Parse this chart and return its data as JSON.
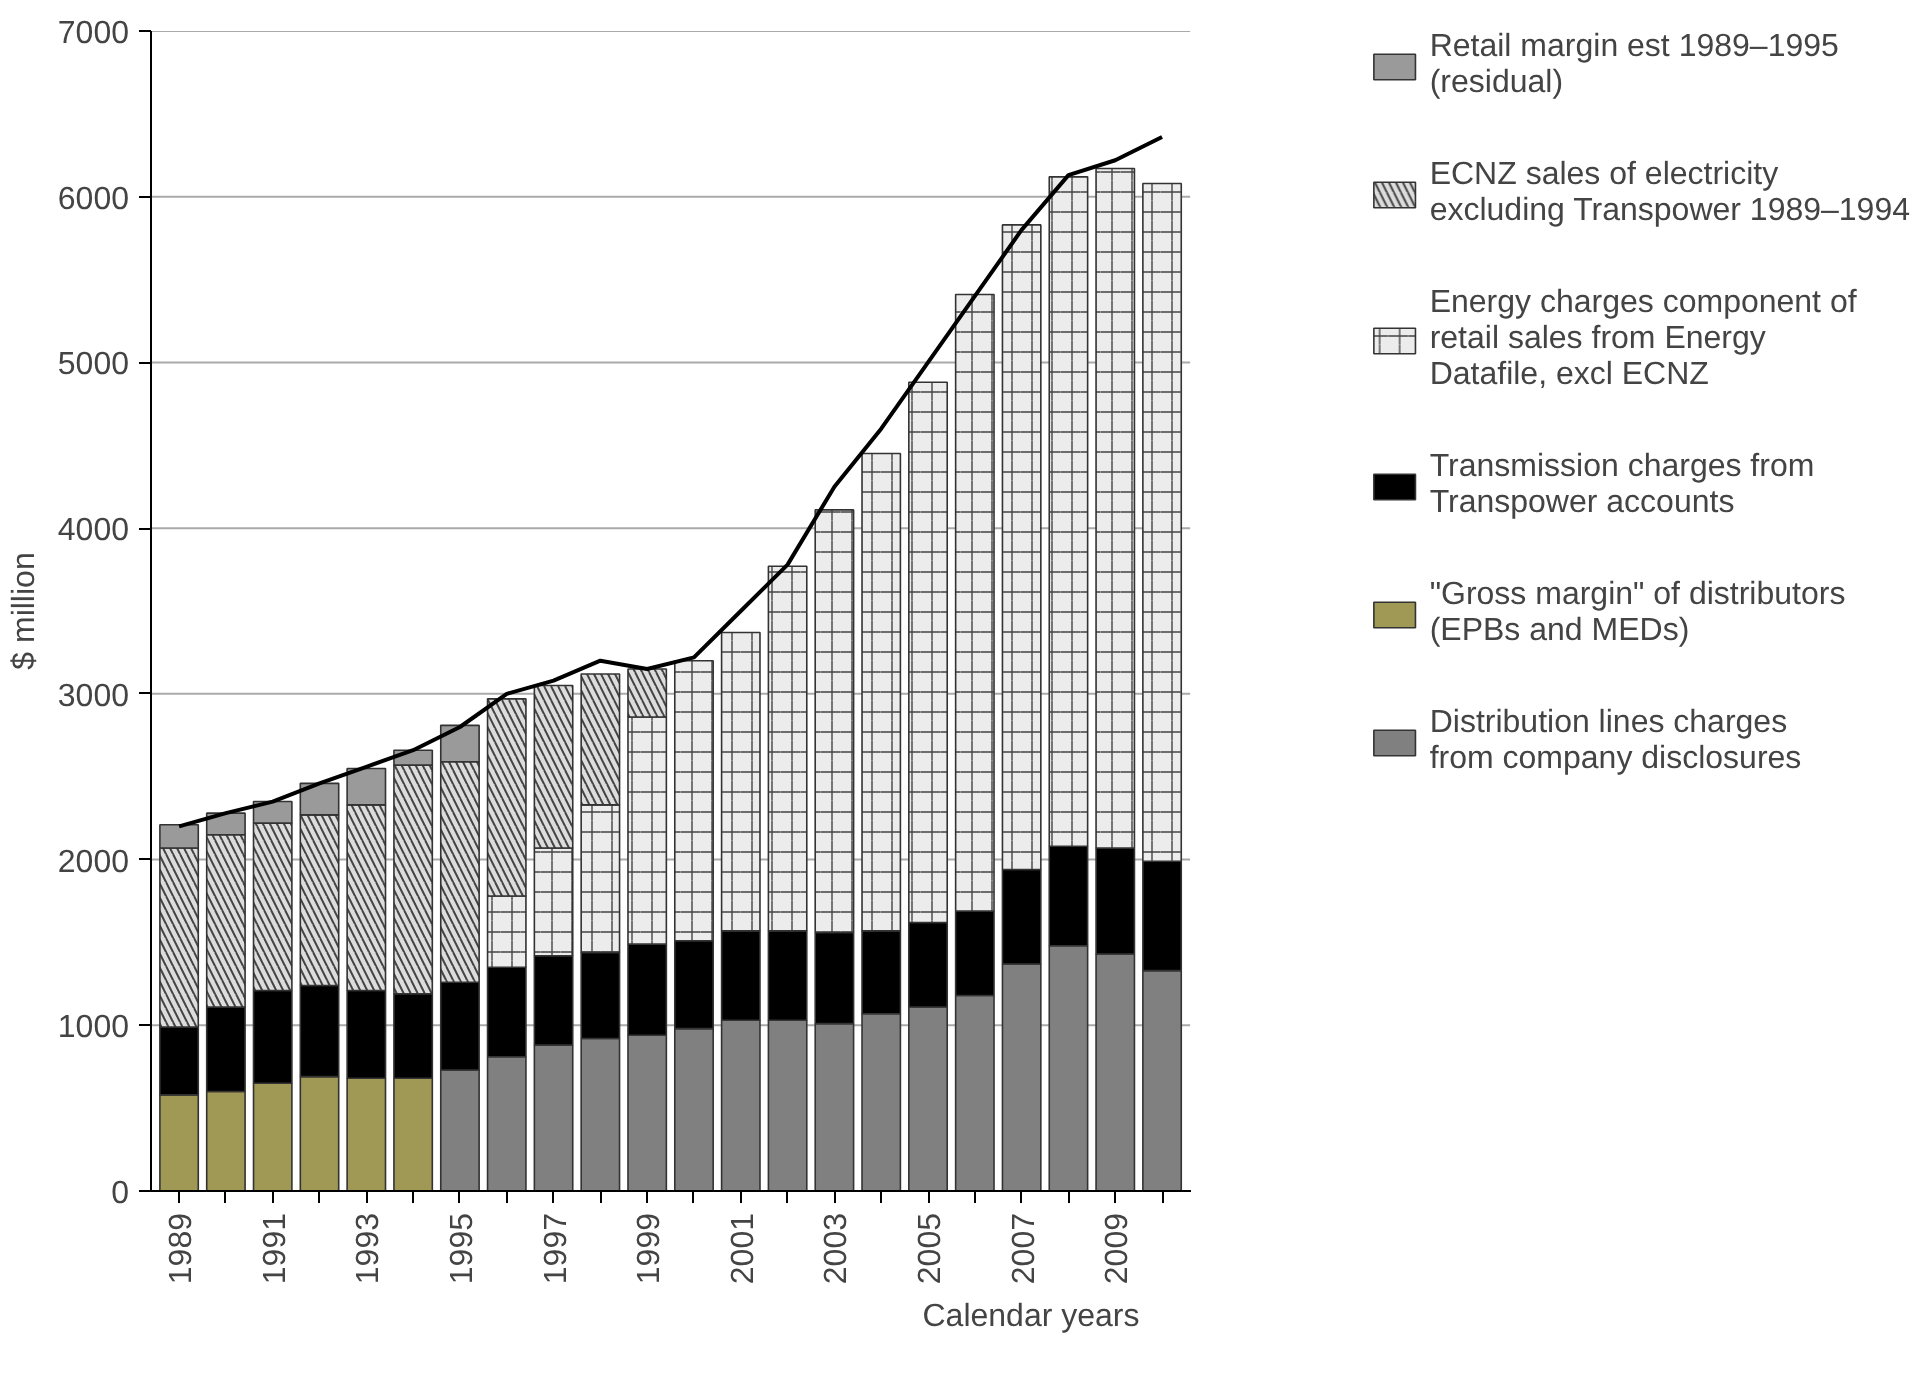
{
  "chart_data": {
    "type": "bar",
    "stacked": true,
    "xlabel": "Calendar years",
    "ylabel": "$ million",
    "categories": [
      "1989",
      null,
      "1991",
      null,
      "1993",
      null,
      "1995",
      null,
      "1997",
      null,
      "1999",
      null,
      "2001",
      null,
      "2003",
      null,
      "2005",
      null,
      "2007",
      null,
      "2009",
      null
    ],
    "ylim": [
      0,
      7000
    ],
    "yticks": [
      0,
      1000,
      2000,
      3000,
      4000,
      5000,
      6000,
      7000
    ],
    "grid": "y",
    "legend": "right",
    "series": [
      {
        "name": "Distribution lines charges from company disclosures",
        "color": "#808080",
        "values": [
          null,
          null,
          null,
          null,
          null,
          null,
          730,
          810,
          880,
          920,
          940,
          980,
          1030,
          1030,
          1010,
          1070,
          1110,
          1180,
          1370,
          1480,
          1430,
          1330
        ]
      },
      {
        "name": "\"Gross margin\" of distributors (EPBs and MEDs)",
        "color": "#a09855",
        "values": [
          580,
          600,
          650,
          690,
          680,
          680,
          null,
          null,
          null,
          null,
          null,
          null,
          null,
          null,
          null,
          null,
          null,
          null,
          null,
          null,
          null,
          null
        ]
      },
      {
        "name": "Transmission charges from Transpower accounts",
        "color": "#000000",
        "values": [
          410,
          510,
          560,
          550,
          530,
          510,
          530,
          540,
          540,
          520,
          550,
          530,
          540,
          540,
          550,
          500,
          510,
          510,
          570,
          600,
          640,
          660
        ]
      },
      {
        "name": "Energy charges component of retail sales from Energy Datafile, excl ECNZ",
        "color": "#ececec",
        "values": [
          null,
          null,
          null,
          null,
          null,
          null,
          null,
          430,
          650,
          890,
          1370,
          1690,
          1800,
          2200,
          2550,
          2880,
          3260,
          3720,
          3890,
          4040,
          4100,
          4090
        ]
      },
      {
        "name": "ECNZ sales of electricity excluding Transpower 1989–1994",
        "color": "#dcdcdc",
        "values": [
          1080,
          1040,
          1010,
          1030,
          1120,
          1380,
          1330,
          1190,
          980,
          790,
          290,
          null,
          null,
          null,
          null,
          null,
          null,
          null,
          null,
          null,
          null,
          null
        ]
      },
      {
        "name": "Retail margin est 1989–1995 (residual)",
        "color": "#9a9a9a",
        "values": [
          140,
          130,
          130,
          190,
          220,
          90,
          220,
          null,
          null,
          null,
          null,
          null,
          null,
          null,
          null,
          null,
          null,
          null,
          null,
          null,
          null,
          null
        ]
      },
      {
        "type": "line",
        "color": "#000000",
        "values": [
          2200,
          2280,
          2350,
          2460,
          2560,
          2660,
          2800,
          3000,
          3080,
          3200,
          3150,
          3220,
          3500,
          3780,
          4250,
          4600,
          5000,
          5400,
          5800,
          6130,
          6220,
          6360
        ]
      }
    ]
  }
}
